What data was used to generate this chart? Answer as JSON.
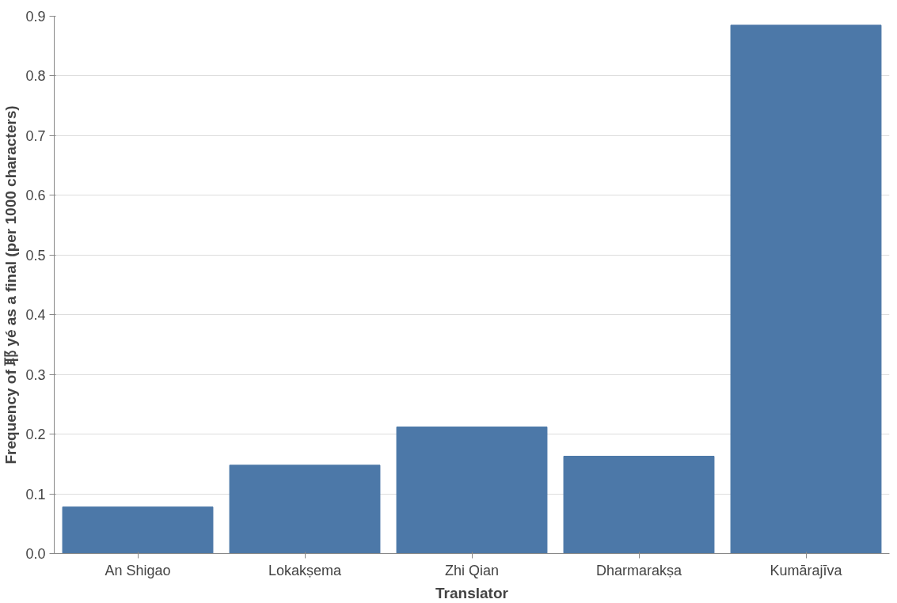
{
  "chart_data": {
    "type": "bar",
    "xlabel": "Translator",
    "ylabel": "Frequency of 耶 yé as a final (per 1000 characters)",
    "categories": [
      "An Shigao",
      "Lokakṣema",
      "Zhi Qian",
      "Dharmarakṣa",
      "Kumārajīva"
    ],
    "values": [
      0.078,
      0.148,
      0.212,
      0.163,
      0.885
    ],
    "color": "#4c78a8",
    "ylim": [
      0,
      0.9
    ],
    "yticks": [
      {
        "value": 0,
        "label": "0.0"
      },
      0.1,
      0.2,
      0.3,
      0.4,
      0.5,
      0.6,
      0.7,
      0.8,
      0.9
    ],
    "grid": "y"
  }
}
